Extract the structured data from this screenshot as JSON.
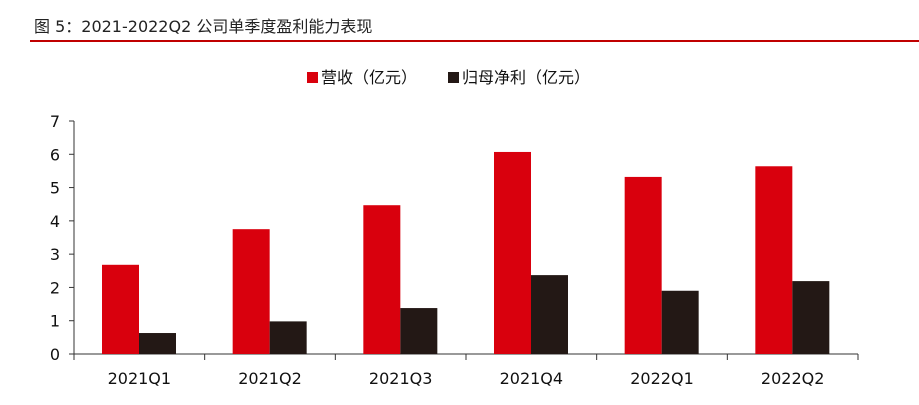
{
  "figure": {
    "title": "图 5：2021-2022Q2 公司单季度盈利能力表现"
  },
  "colors": {
    "revenue": "#d9000d",
    "profit": "#231815",
    "title_rule": "#c00000",
    "axis": "#333333"
  },
  "chart_data": {
    "type": "bar",
    "title": "",
    "xlabel": "",
    "ylabel": "",
    "categories": [
      "2021Q1",
      "2021Q2",
      "2021Q3",
      "2021Q4",
      "2022Q1",
      "2022Q2"
    ],
    "series": [
      {
        "name": "营收（亿元）",
        "values": [
          2.68,
          3.75,
          4.47,
          6.07,
          5.32,
          5.64
        ]
      },
      {
        "name": "归母净利（亿元）",
        "values": [
          0.63,
          0.98,
          1.38,
          2.37,
          1.9,
          2.19
        ]
      }
    ],
    "ylim": [
      0,
      7
    ],
    "yticks": [
      "0",
      "1",
      "2",
      "3",
      "4",
      "5",
      "6",
      "7"
    ],
    "grid": false,
    "legend": "top-center"
  }
}
